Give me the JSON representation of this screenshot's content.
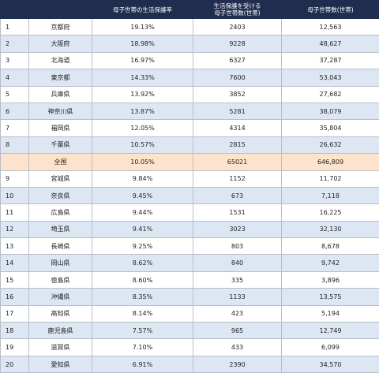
{
  "table": {
    "header": [
      "",
      "",
      "母子世帯の生活保護率",
      [
        "生活保護を受ける",
        "母子世帯数(世帯)"
      ],
      "母子世帯数(世帯)"
    ],
    "rows": [
      [
        "1",
        "京都府",
        "19.13%",
        "2403",
        "12,563"
      ],
      [
        "2",
        "大阪府",
        "18.98%",
        "9228",
        "48,627"
      ],
      [
        "3",
        "北海道",
        "16.97%",
        "6327",
        "37,287"
      ],
      [
        "4",
        "東京都",
        "14.33%",
        "7600",
        "53,043"
      ],
      [
        "5",
        "兵庫県",
        "13.92%",
        "3852",
        "27,682"
      ],
      [
        "6",
        "神奈川県",
        "13.87%",
        "5281",
        "38,079"
      ],
      [
        "7",
        "福岡県",
        "12.05%",
        "4314",
        "35,804"
      ],
      [
        "8",
        "千葉県",
        "10.57%",
        "2815",
        "26,632"
      ],
      [
        null,
        "全国",
        "10.05%",
        "65021",
        "646,809"
      ],
      [
        "9",
        "宮城県",
        "9.84%",
        "1152",
        "11,702"
      ],
      [
        "10",
        "奈良県",
        "9.45%",
        "673",
        "7,118"
      ],
      [
        "11",
        "広島県",
        "9.44%",
        "1531",
        "16,225"
      ],
      [
        "12",
        "埼玉県",
        "9.41%",
        "3023",
        "32,130"
      ],
      [
        "13",
        "長崎県",
        "9.25%",
        "803",
        "8,678"
      ],
      [
        "14",
        "岡山県",
        "8.62%",
        "840",
        "9,742"
      ],
      [
        "15",
        "徳島県",
        "8.60%",
        "335",
        "3,896"
      ],
      [
        "16",
        "沖縄県",
        "8.35%",
        "1133",
        "13,575"
      ],
      [
        "17",
        "高知県",
        "8.14%",
        "423",
        "5,194"
      ],
      [
        "18",
        "鹿児島県",
        "7.57%",
        "965",
        "12,749"
      ],
      [
        "19",
        "滋賀県",
        "7.10%",
        "433",
        "6,099"
      ],
      [
        "20",
        "愛知県",
        "6.91%",
        "2390",
        "34,570"
      ]
    ]
  }
}
